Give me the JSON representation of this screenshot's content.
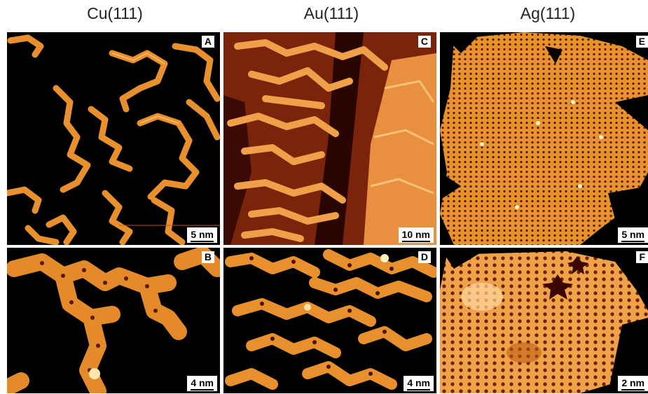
{
  "columns": [
    {
      "title": "Cu(111)"
    },
    {
      "title": "Au(111)"
    },
    {
      "title": "Ag(111)"
    }
  ],
  "panels": [
    {
      "letter": "A",
      "scale": "5 nm"
    },
    {
      "letter": "B",
      "scale": "4 nm"
    },
    {
      "letter": "C",
      "scale": "10 nm"
    },
    {
      "letter": "D",
      "scale": "4 nm"
    },
    {
      "letter": "E",
      "scale": "5 nm"
    },
    {
      "letter": "F",
      "scale": "2 nm"
    }
  ],
  "colors": {
    "background": "#000000",
    "molecule": "#f0a040",
    "molecule_highlight": "#ffe0a0",
    "au_substrate": "#8a2a10",
    "ag_substrate": "#e08a30"
  }
}
